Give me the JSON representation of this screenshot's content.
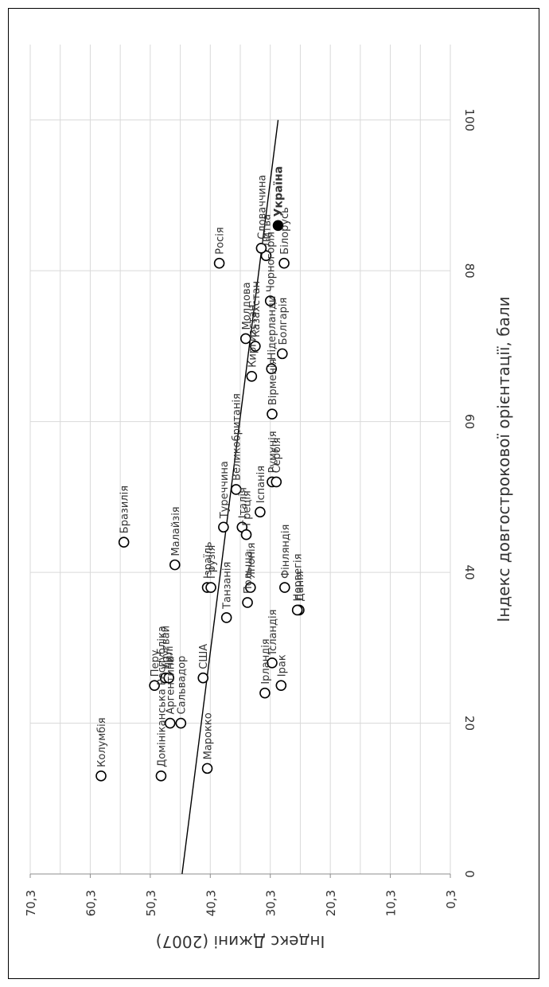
{
  "chart_data": {
    "type": "scatter",
    "orientation": "rotated 90 degrees clockwise",
    "xlabel": "Індекс довгострокової орієнтації, бали",
    "ylabel": "Індекс Джині (2007)",
    "xlim": [
      0,
      110
    ],
    "ylim": [
      0.3,
      70.3
    ],
    "x_ticks": [
      "0",
      "20",
      "40",
      "60",
      "80",
      "100"
    ],
    "y_ticks": [
      "0,3",
      "10,3",
      "20,3",
      "30,3",
      "40,3",
      "50,3",
      "60,3",
      "70,3"
    ],
    "grid": true,
    "marker": "open circle",
    "trendline": {
      "type": "linear",
      "x": [
        0,
        100
      ],
      "y": [
        45.0,
        29.0
      ]
    },
    "highlight": "Україна",
    "points": [
      {
        "label": "Колумбія",
        "x": 13,
        "y": 58.5
      },
      {
        "label": "Бразилія",
        "x": 44,
        "y": 54.7
      },
      {
        "label": "Малайзія",
        "x": 41,
        "y": 46.2
      },
      {
        "label": "Домініканська Республіка",
        "x": 13,
        "y": 48.5
      },
      {
        "label": "Перу",
        "x": 25,
        "y": 49.6
      },
      {
        "label": "Аргентина",
        "x": 20,
        "y": 47.0
      },
      {
        "label": "Уругвай",
        "x": 26,
        "y": 47.8
      },
      {
        "label": "Чилі",
        "x": 26,
        "y": 47.2
      },
      {
        "label": "Сальвадор",
        "x": 20,
        "y": 45.2
      },
      {
        "label": "Марокко",
        "x": 14,
        "y": 40.8
      },
      {
        "label": "США",
        "x": 26,
        "y": 41.5
      },
      {
        "label": "Ізраїль",
        "x": 38,
        "y": 40.8
      },
      {
        "label": "Грузія",
        "x": 38,
        "y": 40.2
      },
      {
        "label": "Танзанія",
        "x": 34,
        "y": 37.6
      },
      {
        "label": "Туреччина",
        "x": 46,
        "y": 38.1
      },
      {
        "label": "Великобританія",
        "x": 51,
        "y": 36.0
      },
      {
        "label": "Ірландія",
        "x": 24,
        "y": 31.2
      },
      {
        "label": "Італія",
        "x": 46,
        "y": 35.0
      },
      {
        "label": "Японія",
        "x": 38,
        "y": 33.6
      },
      {
        "label": "Польща",
        "x": 36,
        "y": 34.1
      },
      {
        "label": "Греція",
        "x": 45,
        "y": 34.3
      },
      {
        "label": "Іспанія",
        "x": 48,
        "y": 32.0
      },
      {
        "label": "Ісландія",
        "x": 28,
        "y": 30.0
      },
      {
        "label": "Ірак",
        "x": 25,
        "y": 28.5
      },
      {
        "label": "Фінляндія",
        "x": 38,
        "y": 27.9
      },
      {
        "label": "Данія",
        "x": 35,
        "y": 25.5
      },
      {
        "label": "Норвегія",
        "x": 35,
        "y": 25.8
      },
      {
        "label": "Румунія",
        "x": 52,
        "y": 30.0
      },
      {
        "label": "Сербія",
        "x": 52,
        "y": 29.3
      },
      {
        "label": "Вірменія",
        "x": 61,
        "y": 30.0
      },
      {
        "label": "Киргизстан",
        "x": 66,
        "y": 33.4
      },
      {
        "label": "Нідерланди",
        "x": 67,
        "y": 30.1
      },
      {
        "label": "Болгарія",
        "x": 69,
        "y": 28.3
      },
      {
        "label": "Молдова",
        "x": 71,
        "y": 34.4
      },
      {
        "label": "Казахстан",
        "x": 70,
        "y": 32.8
      },
      {
        "label": "Чорногорія",
        "x": 76,
        "y": 30.3
      },
      {
        "label": "Росія",
        "x": 81,
        "y": 38.8
      },
      {
        "label": "Литва",
        "x": 82,
        "y": 31.0
      },
      {
        "label": "Словаччина",
        "x": 83,
        "y": 31.8
      },
      {
        "label": "Білорусь",
        "x": 81,
        "y": 28.0
      },
      {
        "label": "Україна",
        "x": 86,
        "y": 29.0
      }
    ]
  }
}
